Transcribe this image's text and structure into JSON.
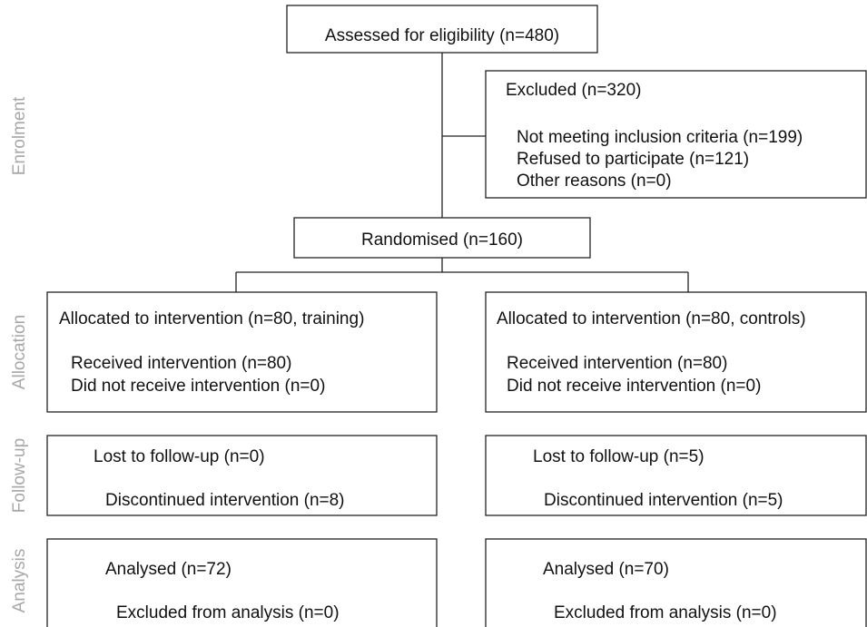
{
  "stages": [
    "Enrolment",
    "Allocation",
    "Follow-up",
    "Analysis"
  ],
  "nodes": {
    "assessed": "Assessed for eligibility (n=480)",
    "excluded": {
      "title": "Excluded (n=320)",
      "items": [
        "Not meeting inclusion criteria (n=199)",
        "Refused to participate (n=121)",
        "Other reasons (n=0)"
      ]
    },
    "randomised": "Randomised (n=160)",
    "allocation": [
      {
        "title": "Allocated to intervention (n=80, training)",
        "items": [
          "Received intervention (n=80)",
          "Did not receive intervention (n=0)"
        ]
      },
      {
        "title": "Allocated to intervention (n=80, controls)",
        "items": [
          "Received intervention (n=80)",
          "Did not receive intervention (n=0)"
        ]
      }
    ],
    "followup": [
      {
        "lost": "Lost to follow-up (n=0)",
        "discontinued": "Discontinued intervention (n=8)"
      },
      {
        "lost": "Lost to follow-up (n=5)",
        "discontinued": "Discontinued intervention (n=5)"
      }
    ],
    "analysis": [
      {
        "analysed": "Analysed (n=72)",
        "excluded": "Excluded from analysis (n=0)"
      },
      {
        "analysed": "Analysed (n=70)",
        "excluded": "Excluded from analysis (n=0)"
      }
    ]
  }
}
